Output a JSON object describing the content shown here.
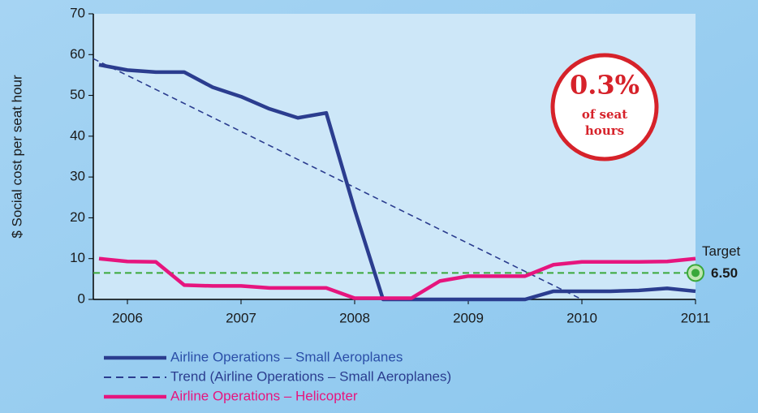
{
  "chart_data": {
    "type": "line",
    "ylabel": "$ Social cost per seat hour",
    "xlim": [
      2005.7,
      2011
    ],
    "xticks": [
      2006,
      2007,
      2008,
      2009,
      2010,
      2011
    ],
    "ylim": [
      0,
      70
    ],
    "yticks": [
      0,
      10,
      20,
      30,
      40,
      50,
      60,
      70
    ],
    "series": [
      {
        "name": "Airline Operations – Small Aeroplanes",
        "color": "#2b3d8f",
        "dash": false,
        "x": [
          2005.75,
          2006,
          2006.25,
          2006.5,
          2006.75,
          2007,
          2007.25,
          2007.5,
          2007.75,
          2008,
          2008.25,
          2008.5,
          2008.75,
          2009,
          2009.25,
          2009.5,
          2009.75,
          2010,
          2010.25,
          2010.5,
          2010.75,
          2011
        ],
        "values": [
          57.5,
          56.2,
          55.7,
          55.7,
          52,
          49.7,
          46.7,
          44.5,
          45.7,
          22,
          0,
          0,
          0,
          0,
          0,
          0,
          2,
          2,
          2,
          2.2,
          2.7,
          2
        ]
      },
      {
        "name": "Trend (Airline Operations – Small Aeroplanes)",
        "color": "#2b3d8f",
        "dash": true,
        "x": [
          2005.7,
          2010
        ],
        "values": [
          59,
          0
        ]
      },
      {
        "name": "Airline Operations – Helicopter",
        "color": "#e6157e",
        "dash": false,
        "x": [
          2005.75,
          2006,
          2006.25,
          2006.5,
          2006.75,
          2007,
          2007.25,
          2007.5,
          2007.75,
          2008,
          2008.25,
          2008.5,
          2008.75,
          2009,
          2009.25,
          2009.5,
          2009.75,
          2010,
          2010.25,
          2010.5,
          2010.75,
          2011
        ],
        "values": [
          10,
          9.3,
          9.2,
          3.5,
          3.3,
          3.3,
          2.8,
          2.8,
          2.8,
          0.3,
          0.3,
          0.3,
          4.5,
          5.7,
          5.7,
          5.7,
          8.5,
          9.2,
          9.2,
          9.2,
          9.3,
          10
        ]
      }
    ],
    "target": {
      "name": "Target",
      "value": 6.5,
      "label": "6.50",
      "color": "#3aa83a"
    },
    "badge": {
      "value": "0.3%",
      "line1": "of seat",
      "line2": "hours"
    }
  }
}
